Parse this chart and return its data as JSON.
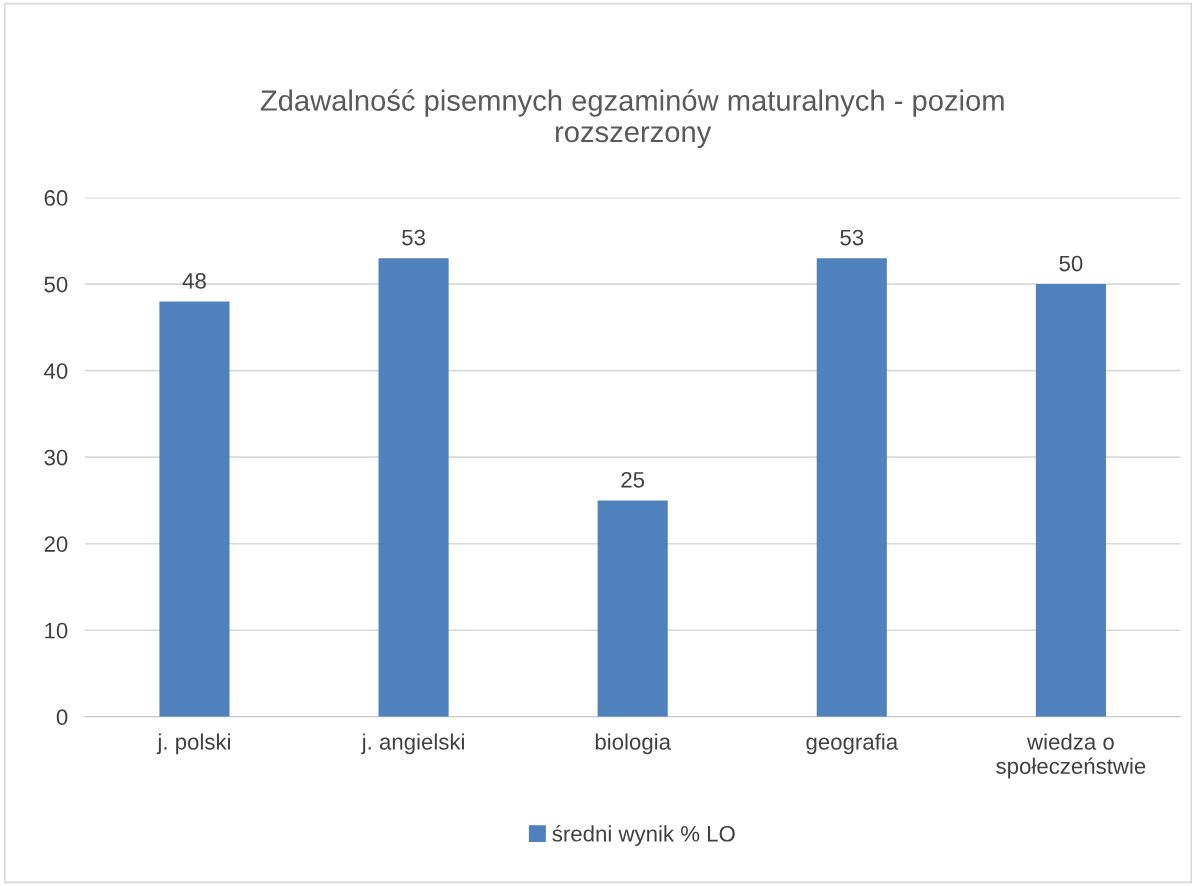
{
  "chart_data": {
    "type": "bar",
    "title": "Zdawalność pisemnych egzaminów maturalnych - poziom rozszerzony",
    "categories": [
      "j. polski",
      "j. angielski",
      "biologia",
      "geografia",
      "wiedza o społeczeństwie"
    ],
    "series": [
      {
        "name": "średni wynik % LO",
        "color": "#4f81bd",
        "values": [
          48,
          53,
          25,
          53,
          50
        ]
      }
    ],
    "ylim": [
      0,
      60
    ],
    "yticks": [
      0,
      10,
      20,
      30,
      40,
      50,
      60
    ],
    "grid": "y",
    "legend": "bottom",
    "data_labels": true
  }
}
